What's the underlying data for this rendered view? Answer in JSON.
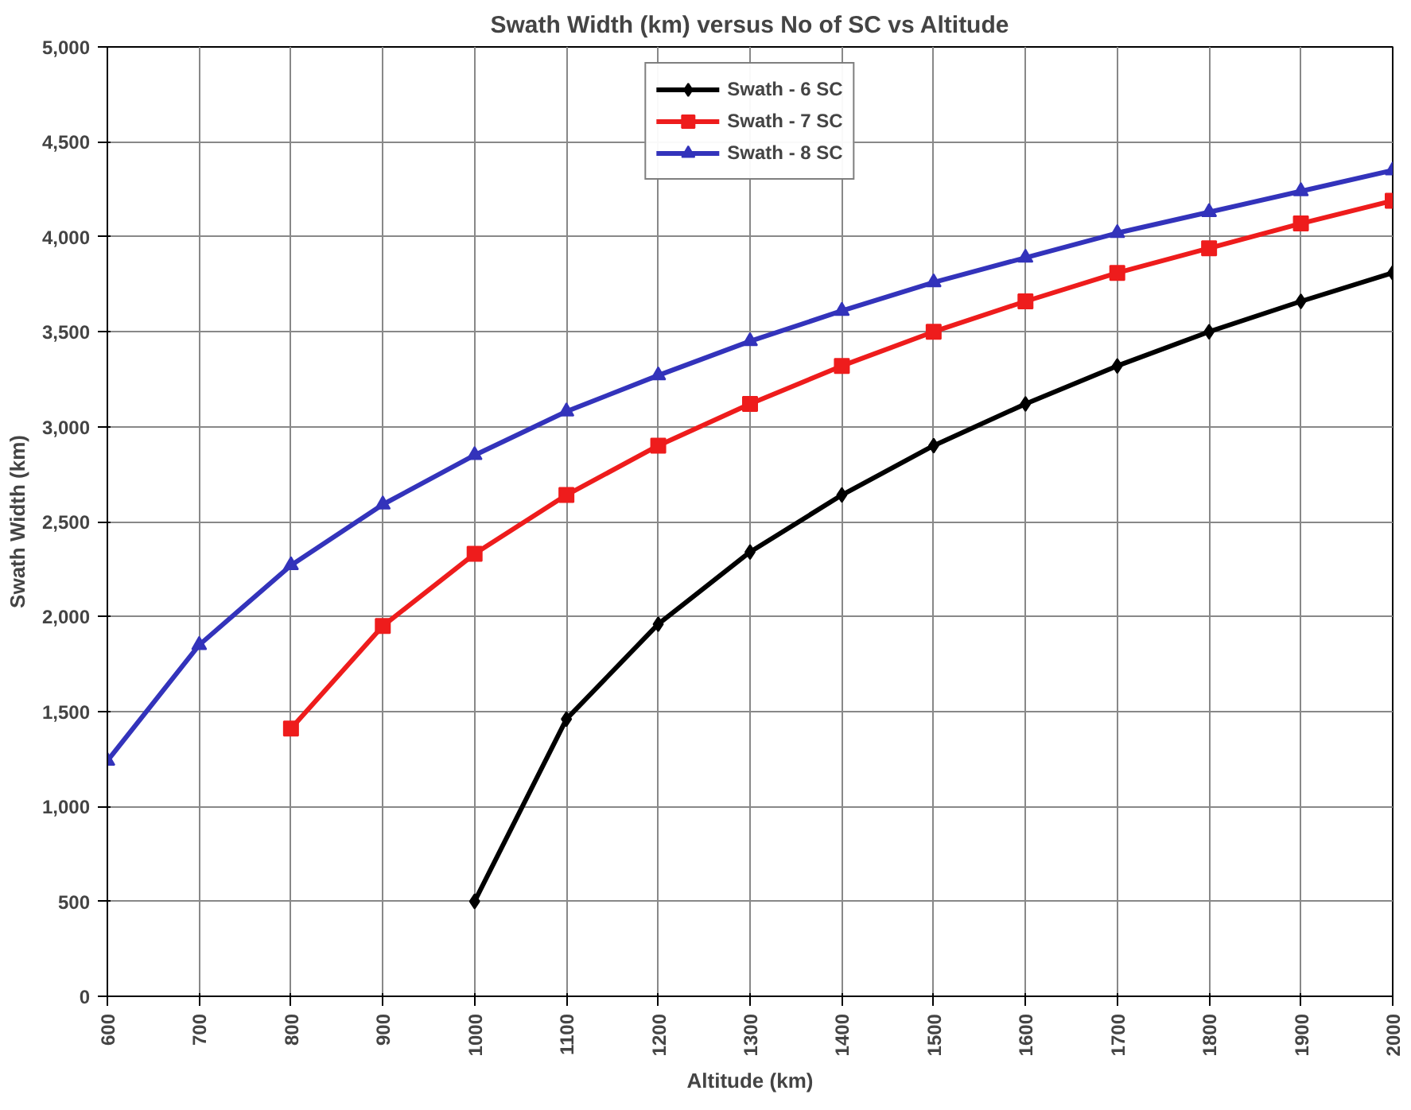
{
  "chart_data": {
    "type": "line",
    "title": "Swath Width (km) versus No of SC vs Altitude",
    "xlabel": "Altitude (km)",
    "ylabel": "Swath Width (km)",
    "xlim": [
      600,
      2000
    ],
    "xticks": [
      600,
      700,
      800,
      900,
      1000,
      1100,
      1200,
      1300,
      1400,
      1500,
      1600,
      1700,
      1800,
      1900,
      2000
    ],
    "ylim": [
      0,
      5000
    ],
    "yticks": [
      0,
      500,
      {
        "value": 1000,
        "label": "1,000"
      },
      {
        "value": 1500,
        "label": "1,500"
      },
      {
        "value": 2000,
        "label": "2,000"
      },
      {
        "value": 2500,
        "label": "2,500"
      },
      {
        "value": 3000,
        "label": "3,000"
      },
      {
        "value": 3500,
        "label": "3,500"
      },
      {
        "value": 4000,
        "label": "4,000"
      },
      {
        "value": 4500,
        "label": "4,500"
      },
      {
        "value": 5000,
        "label": "5,000"
      }
    ],
    "grid": true,
    "legend": "top center",
    "line_style": "solid",
    "series": [
      {
        "name": "Swath - 6 SC",
        "color": "#000000",
        "marker": "diamond",
        "x": [
          1000,
          1100,
          1200,
          1300,
          1400,
          1500,
          1600,
          1700,
          1800,
          1900,
          2000
        ],
        "values": [
          500,
          1460,
          1960,
          2340,
          2640,
          2900,
          3120,
          3320,
          3500,
          3660,
          3810
        ]
      },
      {
        "name": "Swath - 7 SC",
        "color": "#ee1c1c",
        "marker": "square",
        "x": [
          800,
          900,
          1000,
          1100,
          1200,
          1300,
          1400,
          1500,
          1600,
          1700,
          1800,
          1900,
          2000
        ],
        "values": [
          1410,
          1950,
          2330,
          2640,
          2900,
          3120,
          3320,
          3500,
          3660,
          3810,
          3940,
          4070,
          4190
        ]
      },
      {
        "name": "Swath - 8 SC",
        "color": "#3333bb",
        "marker": "triangle",
        "x": [
          600,
          700,
          800,
          900,
          1000,
          1100,
          1200,
          1300,
          1400,
          1500,
          1600,
          1700,
          1800,
          1900,
          2000
        ],
        "values": [
          1240,
          1850,
          2270,
          2590,
          2850,
          3080,
          3270,
          3450,
          3610,
          3760,
          3890,
          4020,
          4130,
          4240,
          4350
        ]
      }
    ]
  }
}
